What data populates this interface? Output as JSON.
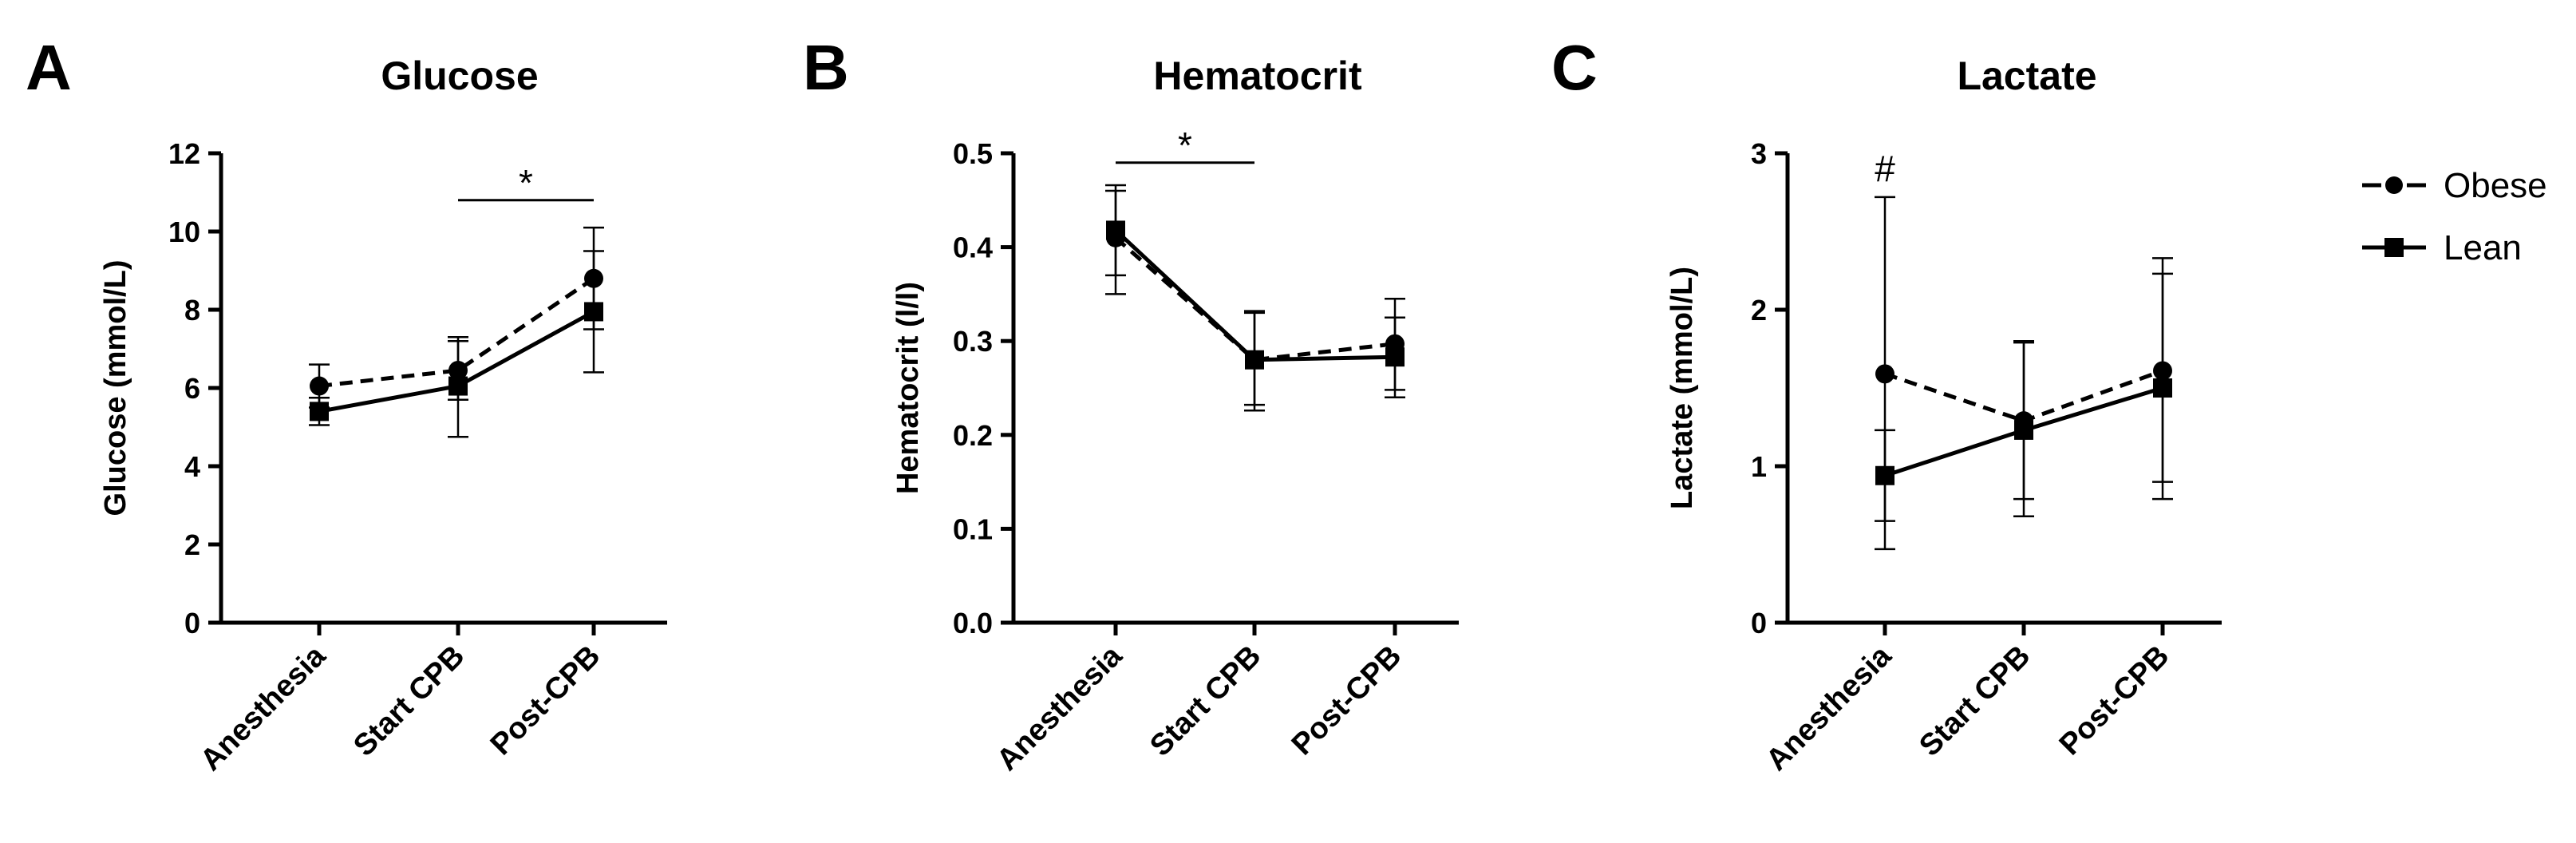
{
  "chart_data": [
    {
      "panel": "A",
      "type": "line",
      "title": "Glucose",
      "xlabel": "",
      "ylabel": "Glucose (mmol/L)",
      "categories": [
        "Anesthesia",
        "Start CPB",
        "Post-CPB"
      ],
      "ylim": [
        0,
        12
      ],
      "yticks": [
        0,
        2,
        4,
        6,
        8,
        10,
        12
      ],
      "ytick_labels": [
        "0",
        "2",
        "4",
        "6",
        "8",
        "10",
        "12"
      ],
      "series": [
        {
          "name": "Obese",
          "marker": "circle",
          "line": "dashed",
          "values": [
            6.05,
            6.45,
            8.8
          ],
          "err_low": [
            5.5,
            5.7,
            7.5
          ],
          "err_high": [
            6.6,
            7.2,
            10.1
          ]
        },
        {
          "name": "Lean",
          "marker": "square",
          "line": "solid",
          "values": [
            5.4,
            6.05,
            7.95
          ],
          "err_low": [
            5.05,
            4.75,
            6.4
          ],
          "err_high": [
            5.75,
            7.3,
            9.5
          ]
        }
      ],
      "annotations": [
        {
          "text": "*",
          "type": "bracket",
          "from": 1,
          "to": 2,
          "y": 10.8
        }
      ]
    },
    {
      "panel": "B",
      "type": "line",
      "title": "Hematocrit",
      "xlabel": "",
      "ylabel": "Hematocrit (l/l)",
      "categories": [
        "Anesthesia",
        "Start CPB",
        "Post-CPB"
      ],
      "ylim": [
        0,
        0.5
      ],
      "yticks": [
        0,
        0.1,
        0.2,
        0.3,
        0.4,
        0.5
      ],
      "ytick_labels": [
        "0.0",
        "0.1",
        "0.2",
        "0.3",
        "0.4",
        "0.5"
      ],
      "series": [
        {
          "name": "Obese",
          "marker": "circle",
          "line": "dashed",
          "values": [
            0.41,
            0.28,
            0.297
          ],
          "err_low": [
            0.35,
            0.232,
            0.248
          ],
          "err_high": [
            0.46,
            0.33,
            0.345
          ]
        },
        {
          "name": "Lean",
          "marker": "square",
          "line": "solid",
          "values": [
            0.418,
            0.28,
            0.283
          ],
          "err_low": [
            0.37,
            0.226,
            0.24
          ],
          "err_high": [
            0.466,
            0.332,
            0.325
          ]
        }
      ],
      "annotations": [
        {
          "text": "*",
          "type": "bracket",
          "from": 0,
          "to": 1,
          "y": 0.49
        }
      ]
    },
    {
      "panel": "C",
      "type": "line",
      "title": "Lactate",
      "xlabel": "",
      "ylabel": "Lactate (mmol/L)",
      "categories": [
        "Anesthesia",
        "Start CPB",
        "Post-CPB"
      ],
      "ylim": [
        0,
        3
      ],
      "yticks": [
        0,
        1,
        2,
        3
      ],
      "ytick_labels": [
        "0",
        "1",
        "2",
        "3"
      ],
      "series": [
        {
          "name": "Obese",
          "marker": "circle",
          "line": "dashed",
          "values": [
            1.59,
            1.29,
            1.61
          ],
          "err_low": [
            0.47,
            0.79,
            0.9
          ],
          "err_high": [
            2.72,
            1.8,
            2.33
          ]
        },
        {
          "name": "Lean",
          "marker": "square",
          "line": "solid",
          "values": [
            0.94,
            1.23,
            1.5
          ],
          "err_low": [
            0.65,
            0.68,
            0.79
          ],
          "err_high": [
            1.23,
            1.79,
            2.23
          ]
        }
      ],
      "annotations": [
        {
          "text": "#",
          "type": "label",
          "at": 0,
          "y": 2.9
        }
      ]
    }
  ],
  "legend": {
    "position": "top-right",
    "items": [
      {
        "label": "Obese",
        "marker": "circle",
        "line": "dashed"
      },
      {
        "label": "Lean",
        "marker": "square",
        "line": "solid"
      }
    ]
  }
}
